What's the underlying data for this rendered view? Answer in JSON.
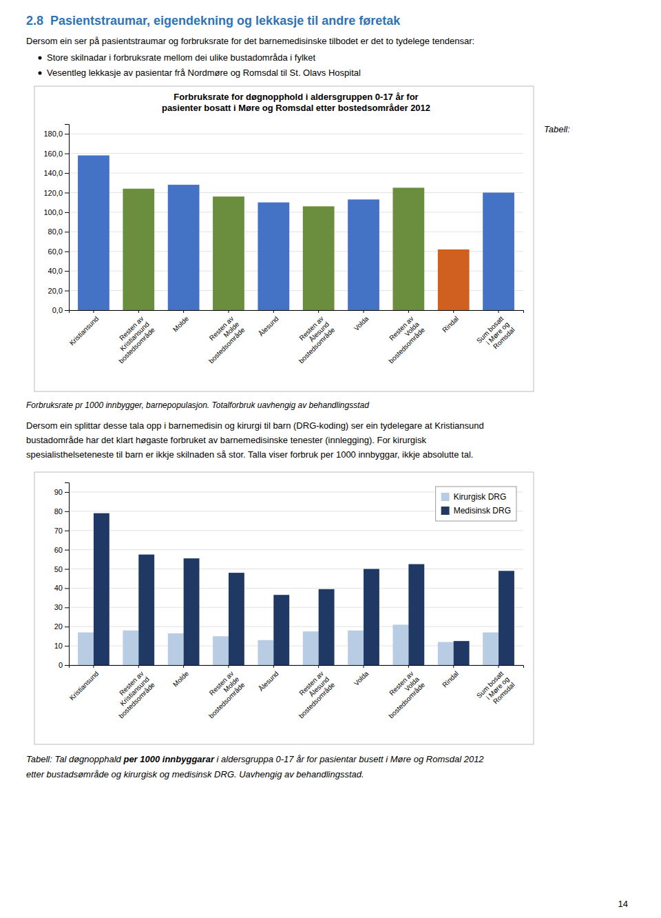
{
  "page_title": "2.8  Pasientstraumar, eigendekning og lekkasje til andre føretak",
  "intro_text": "Dersom ein ser på pasientstraumar og forbruksrate for det barnemedisinske tilbodet er det to tydelege tendensar:",
  "bullets": [
    "Store skilnadar i forbruksrate mellom dei ulike bustadområda i fylket",
    "Vesentleg lekkasje av pasientar frå Nordmøre og Romsdal til St. Olavs Hospital"
  ],
  "chart_data": [
    {
      "type": "bar",
      "title": "Forbruksrate for døgnopphold i aldersgruppen 0-17 år for\npasienter bosatt i Møre og Romsdal etter bostedsområder 2012",
      "categories": [
        "Kristiansund",
        "Resten av\nKristiansund\nbostedsområde",
        "Molde",
        "Resten av\nMolde\nbostedsområde",
        "Ålesund",
        "Resten av\nÅlesund\nbostedsområde",
        "Volda",
        "Resten av\nVolda\nbostedsområde",
        "Rindal",
        "Sum bosatt\ni Møre og\nRomsdal"
      ],
      "values": [
        158.0,
        124.0,
        128.0,
        116.0,
        110.0,
        106.0,
        113.0,
        125.0,
        62.0,
        120.0
      ],
      "colors": [
        "#4472C4",
        "#6B8E3E",
        "#4472C4",
        "#6B8E3E",
        "#4472C4",
        "#6B8E3E",
        "#4472C4",
        "#6B8E3E",
        "#D06020",
        "#4472C4"
      ],
      "ylim": [
        0,
        190
      ],
      "yticks": [
        {
          "value": 0.0,
          "label": "0,0"
        },
        {
          "value": 20.0,
          "label": "20,0"
        },
        {
          "value": 40.0,
          "label": "40,0"
        },
        {
          "value": 60.0,
          "label": "60,0"
        },
        {
          "value": 80.0,
          "label": "80,0"
        },
        {
          "value": 100.0,
          "label": "100,0"
        },
        {
          "value": 120.0,
          "label": "120,0"
        },
        {
          "value": 140.0,
          "label": "140,0"
        },
        {
          "value": 160.0,
          "label": "160,0"
        },
        {
          "value": 180.0,
          "label": "180,0"
        }
      ],
      "grid": true
    },
    {
      "type": "bar",
      "categories": [
        "Kristiansund",
        "Resten av\nKristiansund\nbostedsområde",
        "Molde",
        "Resten av\nMolde\nbostedsområde",
        "Ålesund",
        "Resten av\nÅlesund\nbostedsområde",
        "Volda",
        "Resten av\nVolda\nbostedsområde",
        "Rindal",
        "Sum bosatt\ni Møre og\nRomsdal"
      ],
      "series": [
        {
          "name": "Kirurgisk DRG",
          "color": "#B8CCE4",
          "values": [
            17.0,
            18.0,
            16.5,
            15.0,
            13.0,
            17.5,
            18.0,
            21.0,
            12.0,
            17.0
          ]
        },
        {
          "name": "Medisinsk DRG",
          "color": "#1F3864",
          "values": [
            79.0,
            57.5,
            55.5,
            48.0,
            36.5,
            39.5,
            50.0,
            52.5,
            12.5,
            49.0
          ]
        }
      ],
      "ylim": [
        0,
        95
      ],
      "yticks": [
        0,
        10,
        20,
        30,
        40,
        50,
        60,
        70,
        80,
        90
      ],
      "grid": true,
      "legend": "upper right"
    }
  ],
  "tabell_label": "Tabell:",
  "caption1": "Forbruksrate pr 1000 innbygger, barnepopulasjon. Totalforbruk uavhengig av behandlingsstad",
  "body_lines": [
    "Dersom ein splittar desse tala opp i barnemedisin og kirurgi til barn (DRG-koding) ser ein tydelegare at Kristiansund",
    "bustadområde har det klart høgaste forbruket av barnemedisinske tenester (innlegging). For kirurgisk",
    "spesialisthelseteneste til barn er ikkje skilnaden så stor. Talla viser forbruk per 1000 innbyggar, ikkje absolutte tal."
  ],
  "caption2_line1": [
    "Tabell: Tal døgnopphald ",
    "per 1000 innbyggarar",
    " i aldersgruppa 0-17 år for pasientar busett i Møre og Romsdal 2012"
  ],
  "caption2_line2": "etter bustadsømråde og kirurgisk og medisinsk DRG. Uavhengig av behandlingsstad.",
  "page_number": "14"
}
